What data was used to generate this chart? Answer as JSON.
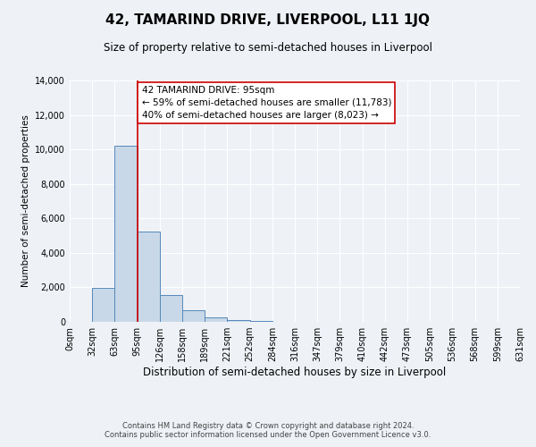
{
  "title": "42, TAMARIND DRIVE, LIVERPOOL, L11 1JQ",
  "subtitle": "Size of property relative to semi-detached houses in Liverpool",
  "xlabel": "Distribution of semi-detached houses by size in Liverpool",
  "ylabel": "Number of semi-detached properties",
  "bin_labels": [
    "0sqm",
    "32sqm",
    "63sqm",
    "95sqm",
    "126sqm",
    "158sqm",
    "189sqm",
    "221sqm",
    "252sqm",
    "284sqm",
    "316sqm",
    "347sqm",
    "379sqm",
    "410sqm",
    "442sqm",
    "473sqm",
    "505sqm",
    "536sqm",
    "568sqm",
    "599sqm",
    "631sqm"
  ],
  "bar_values": [
    0,
    1950,
    10200,
    5250,
    1580,
    650,
    240,
    80,
    50,
    0,
    0,
    0,
    0,
    0,
    0,
    0,
    0,
    0,
    0,
    0
  ],
  "bar_color": "#c8d8e8",
  "bar_edge_color": "#5588bb",
  "vline_color": "#cc0000",
  "annotation_title": "42 TAMARIND DRIVE: 95sqm",
  "annotation_line1": "← 59% of semi-detached houses are smaller (11,783)",
  "annotation_line2": "40% of semi-detached houses are larger (8,023) →",
  "annotation_box_color": "#ffffff",
  "annotation_box_edge": "#cc0000",
  "ylim": [
    0,
    14000
  ],
  "yticks": [
    0,
    2000,
    4000,
    6000,
    8000,
    10000,
    12000,
    14000
  ],
  "footnote1": "Contains HM Land Registry data © Crown copyright and database right 2024.",
  "footnote2": "Contains public sector information licensed under the Open Government Licence v3.0.",
  "background_color": "#eef2f7",
  "grid_color": "#ffffff",
  "title_fontsize": 11,
  "subtitle_fontsize": 8.5,
  "xlabel_fontsize": 8.5,
  "ylabel_fontsize": 7.5,
  "tick_fontsize": 7,
  "annotation_fontsize": 7.5,
  "footnote_fontsize": 6
}
